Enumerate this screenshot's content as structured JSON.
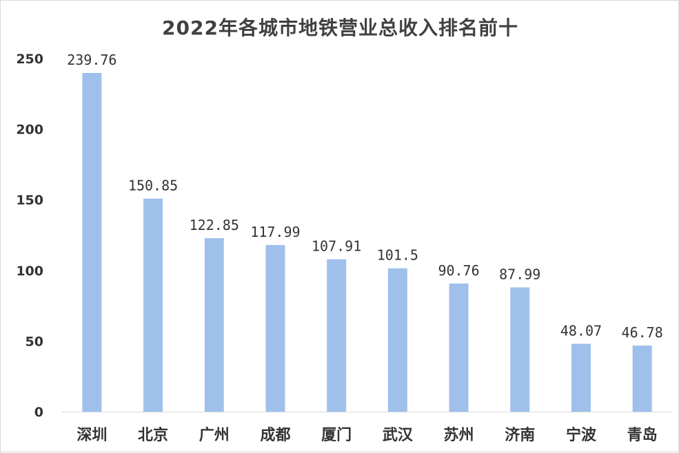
{
  "chart_data": {
    "type": "bar",
    "title": "2022年各城市地铁营业总收入排名前十",
    "categories": [
      "深圳",
      "北京",
      "广州",
      "成都",
      "厦门",
      "武汉",
      "苏州",
      "济南",
      "宁波",
      "青岛"
    ],
    "values": [
      239.76,
      150.85,
      122.85,
      117.99,
      107.91,
      101.5,
      90.76,
      87.99,
      48.07,
      46.78
    ],
    "data_labels": [
      "239.76",
      "150.85",
      "122.85",
      "117.99",
      "107.91",
      "101.5",
      "90.76",
      "87.99",
      "48.07",
      "46.78"
    ],
    "ylim": [
      0,
      250
    ],
    "yticks": [
      0,
      50,
      100,
      150,
      200,
      250
    ],
    "grid": false,
    "legend": "none",
    "bar_color": "#9fc0eb"
  }
}
